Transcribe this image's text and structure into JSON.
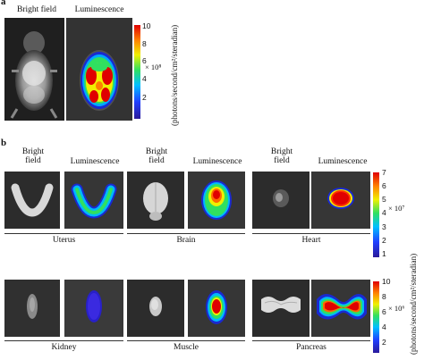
{
  "panel_a": {
    "letter": "a",
    "labels": {
      "bright_field": "Bright field",
      "luminescence": "Luminescence"
    },
    "colorbar": {
      "ticks": [
        "10",
        "8",
        "6",
        "4",
        "2"
      ],
      "multiplier": "× 10⁸",
      "unit": "(photons/second/cm²/steradian)"
    }
  },
  "panel_b": {
    "letter": "b",
    "header_top": {
      "bright_field_1": "Bright",
      "bright_field_2": "field",
      "luminescence": "Luminescence"
    },
    "organs_top": [
      "Uterus",
      "Brain",
      "Heart"
    ],
    "organs_bottom": [
      "Kidney",
      "Muscle",
      "Pancreas"
    ],
    "colorbar_top": {
      "ticks": [
        "7",
        "6",
        "5",
        "4",
        "3",
        "2",
        "1"
      ],
      "multiplier": "× 10⁷"
    },
    "colorbar_bottom": {
      "ticks": [
        "10",
        "8",
        "6",
        "4",
        "2"
      ],
      "multiplier": "× 10⁶"
    },
    "unit": "(photons/second/cm²/steradian)"
  }
}
